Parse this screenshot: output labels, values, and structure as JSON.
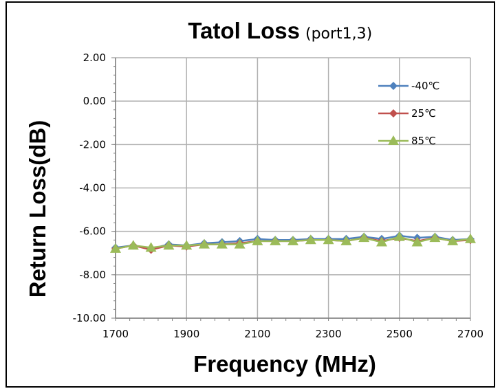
{
  "chart_data": {
    "type": "line",
    "title": "Tatol Loss",
    "subtitle": "(port1,3)",
    "xlabel": "Frequency (MHz)",
    "ylabel": "Return Loss(dB)",
    "xlim": [
      1700,
      2700
    ],
    "ylim": [
      -10,
      2
    ],
    "x_ticks": [
      "1700",
      "1900",
      "2100",
      "2300",
      "2500",
      "2700"
    ],
    "y_ticks": [
      "2.00",
      "0.00",
      "-2.00",
      "-4.00",
      "-6.00",
      "-8.00",
      "-10.00"
    ],
    "grid": true,
    "legend_position": "top-right",
    "x": [
      1700,
      1750,
      1800,
      1850,
      1900,
      1950,
      2000,
      2050,
      2100,
      2150,
      2200,
      2250,
      2300,
      2350,
      2400,
      2450,
      2500,
      2550,
      2600,
      2650,
      2700
    ],
    "series": [
      {
        "name": "-40℃",
        "color": "#4F81BD",
        "marker": "diamond",
        "values": [
          -6.75,
          -6.65,
          -6.8,
          -6.6,
          -6.65,
          -6.55,
          -6.5,
          -6.45,
          -6.35,
          -6.4,
          -6.4,
          -6.35,
          -6.35,
          -6.35,
          -6.25,
          -6.35,
          -6.2,
          -6.3,
          -6.25,
          -6.4,
          -6.35
        ]
      },
      {
        "name": "25℃",
        "color": "#C0504D",
        "marker": "diamond",
        "values": [
          -6.8,
          -6.65,
          -6.85,
          -6.65,
          -6.7,
          -6.6,
          -6.6,
          -6.55,
          -6.45,
          -6.45,
          -6.45,
          -6.4,
          -6.4,
          -6.45,
          -6.3,
          -6.45,
          -6.3,
          -6.45,
          -6.3,
          -6.45,
          -6.4
        ]
      },
      {
        "name": "85℃",
        "color": "#9BBB59",
        "marker": "triangle",
        "values": [
          -6.8,
          -6.65,
          -6.75,
          -6.65,
          -6.65,
          -6.6,
          -6.6,
          -6.6,
          -6.45,
          -6.45,
          -6.45,
          -6.4,
          -6.4,
          -6.45,
          -6.3,
          -6.5,
          -6.25,
          -6.5,
          -6.3,
          -6.45,
          -6.35
        ]
      }
    ]
  }
}
